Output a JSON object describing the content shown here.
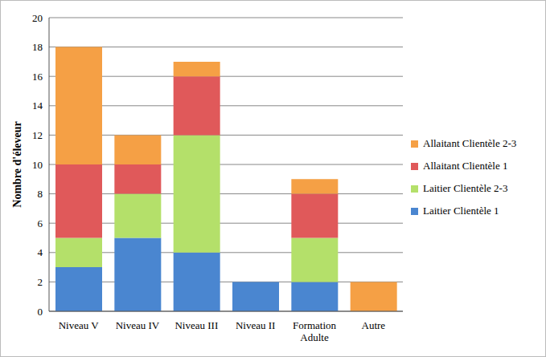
{
  "chart_data": {
    "type": "bar",
    "stacked": true,
    "grid": true,
    "legend": "right",
    "y_label": "Nombre d'éleveur",
    "categories": [
      "Niveau V",
      "Niveau IV",
      "Niveau III",
      "Niveau II",
      "Formation Adulte",
      "Autre"
    ],
    "series": [
      {
        "name": "Laitier Clientèle 1",
        "color": "#4a86d0",
        "values": [
          3,
          5,
          4,
          2,
          2,
          0
        ]
      },
      {
        "name": "Laitier Clientèle 2-3",
        "color": "#b4e06a",
        "values": [
          2,
          3,
          8,
          0,
          3,
          0
        ]
      },
      {
        "name": "Allaitant Clientèle 1",
        "color": "#e0595a",
        "values": [
          5,
          2,
          4,
          0,
          3,
          0
        ]
      },
      {
        "name": "Allaitant Clientèle 2-3",
        "color": "#f5a045",
        "values": [
          8,
          2,
          1,
          0,
          1,
          2
        ]
      }
    ],
    "ylim": [
      0,
      20
    ],
    "yticks": [
      0,
      2,
      4,
      6,
      8,
      10,
      12,
      14,
      16,
      18,
      20
    ]
  }
}
